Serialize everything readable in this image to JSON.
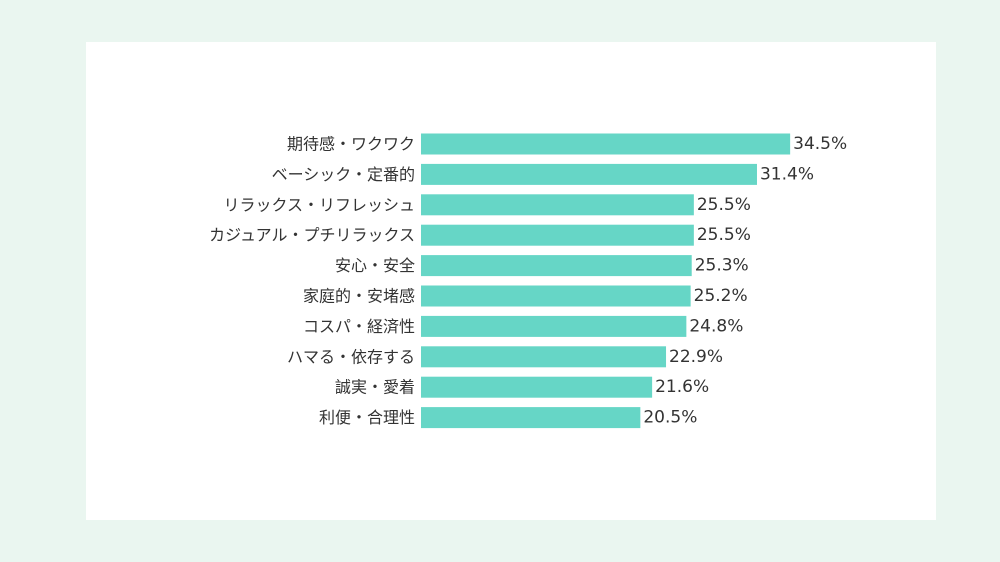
{
  "chart_data": {
    "type": "bar",
    "orientation": "horizontal",
    "categories": [
      "期待感・ワクワク",
      "ベーシック・定番的",
      "リラックス・リフレッシュ",
      "カジュアル・プチリラックス",
      "安心・安全",
      "家庭的・安堵感",
      "コスパ・経済性",
      "ハマる・依存する",
      "誠実・愛着",
      "利便・合理性"
    ],
    "values": [
      34.5,
      31.4,
      25.5,
      25.5,
      25.3,
      25.2,
      24.8,
      22.9,
      21.6,
      20.5
    ],
    "value_labels": [
      "34.5%",
      "31.4%",
      "25.5%",
      "25.5%",
      "25.3%",
      "25.2%",
      "24.8%",
      "22.9%",
      "21.6%",
      "20.5%"
    ],
    "bar_color": "#66d6c6",
    "grid": false,
    "legend": "none"
  },
  "colors": {
    "page_background": "#eaf6f0",
    "card_background": "#ffffff",
    "text": "#333333"
  }
}
